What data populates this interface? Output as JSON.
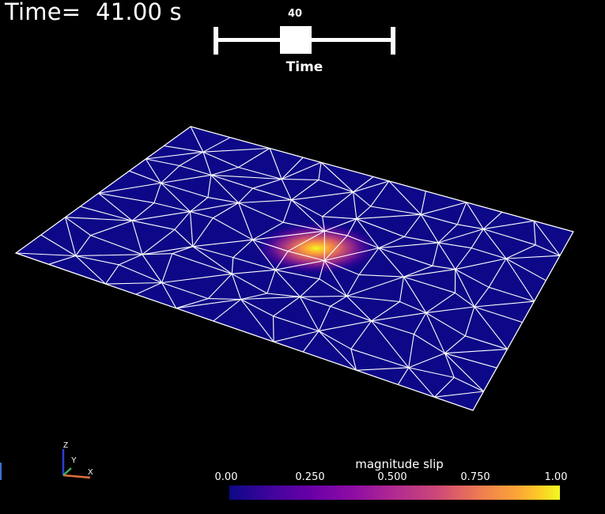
{
  "time_annotation": "Time=  41.00 s",
  "time_slider": {
    "value_label": "40",
    "title": "Time",
    "value_fraction": 0.45
  },
  "orientation_axes": {
    "z": "Z",
    "y": "Y",
    "x": "X"
  },
  "scalar_bar": {
    "title": "magnitude slip",
    "ticks": [
      "0.00",
      "0.250",
      "0.500",
      "0.750",
      "1.00"
    ],
    "colormap": "plasma"
  },
  "colors": {
    "background": "#000000",
    "mesh_fill": "#0d0887",
    "mesh_edges": "#ffffff",
    "slip_hot": "#f0f921"
  }
}
